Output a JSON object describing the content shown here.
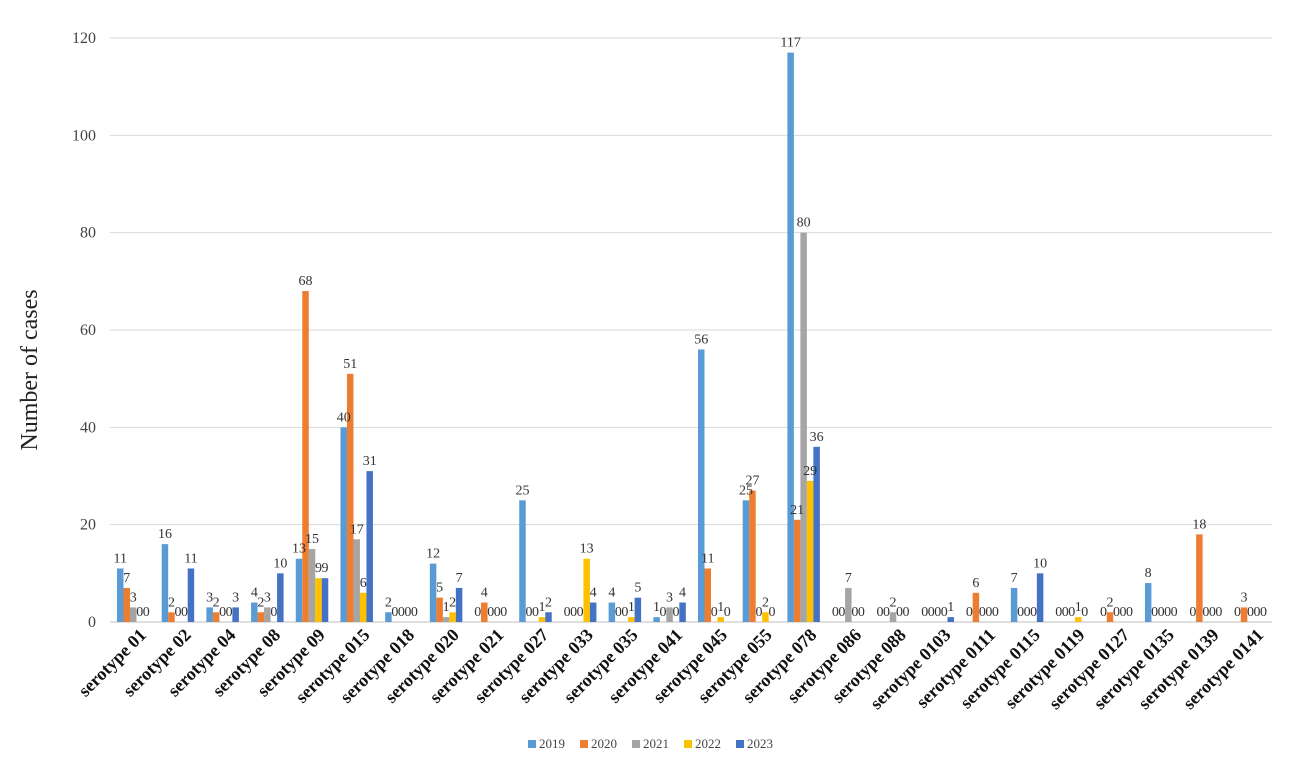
{
  "chart_data": {
    "type": "bar",
    "title": "",
    "xlabel": "",
    "ylabel": "Number of cases",
    "ylim": [
      0,
      120
    ],
    "yticks": [
      0,
      20,
      40,
      60,
      80,
      100,
      120
    ],
    "grid": true,
    "legend_position": "bottom",
    "categories": [
      "serotype 01",
      "serotype 02",
      "serotype 04",
      "serotype 08",
      "serotype 09",
      "serotype 015",
      "serotype 018",
      "serotype 020",
      "serotype 021",
      "serotype 027",
      "serotype 033",
      "serotype 035",
      "serotype 041",
      "serotype 045",
      "serotype 055",
      "serotype 078",
      "serotype 086",
      "serotype 088",
      "serotype 0103",
      "serotype 0111",
      "serotype 0115",
      "serotype 0119",
      "serotype 0127",
      "serotype 0135",
      "serotype 0139",
      "serotype 0141"
    ],
    "series": [
      {
        "name": "2019",
        "color": "#5b9bd5",
        "values": [
          11,
          16,
          3,
          4,
          13,
          40,
          2,
          12,
          0,
          25,
          0,
          4,
          1,
          56,
          25,
          117,
          0,
          0,
          0,
          0,
          7,
          0,
          0,
          8,
          0,
          0
        ]
      },
      {
        "name": "2020",
        "color": "#ed7d31",
        "values": [
          7,
          2,
          2,
          2,
          68,
          51,
          0,
          5,
          4,
          0,
          0,
          0,
          0,
          11,
          27,
          21,
          0,
          0,
          0,
          6,
          0,
          0,
          2,
          0,
          18,
          3
        ]
      },
      {
        "name": "2021",
        "color": "#a5a5a5",
        "values": [
          3,
          0,
          0,
          3,
          15,
          17,
          0,
          1,
          0,
          0,
          0,
          0,
          3,
          0,
          0,
          80,
          7,
          2,
          0,
          0,
          0,
          0,
          0,
          0,
          0,
          0
        ]
      },
      {
        "name": "2022",
        "color": "#ffc000",
        "values": [
          0,
          0,
          0,
          0,
          9,
          6,
          0,
          2,
          0,
          1,
          13,
          1,
          0,
          1,
          2,
          29,
          0,
          0,
          0,
          0,
          0,
          1,
          0,
          0,
          0,
          0
        ]
      },
      {
        "name": "2023",
        "color": "#4472c4",
        "values": [
          0,
          11,
          3,
          10,
          9,
          31,
          0,
          7,
          0,
          2,
          4,
          5,
          4,
          0,
          0,
          36,
          0,
          0,
          1,
          0,
          10,
          0,
          0,
          0,
          0,
          0
        ]
      }
    ]
  }
}
